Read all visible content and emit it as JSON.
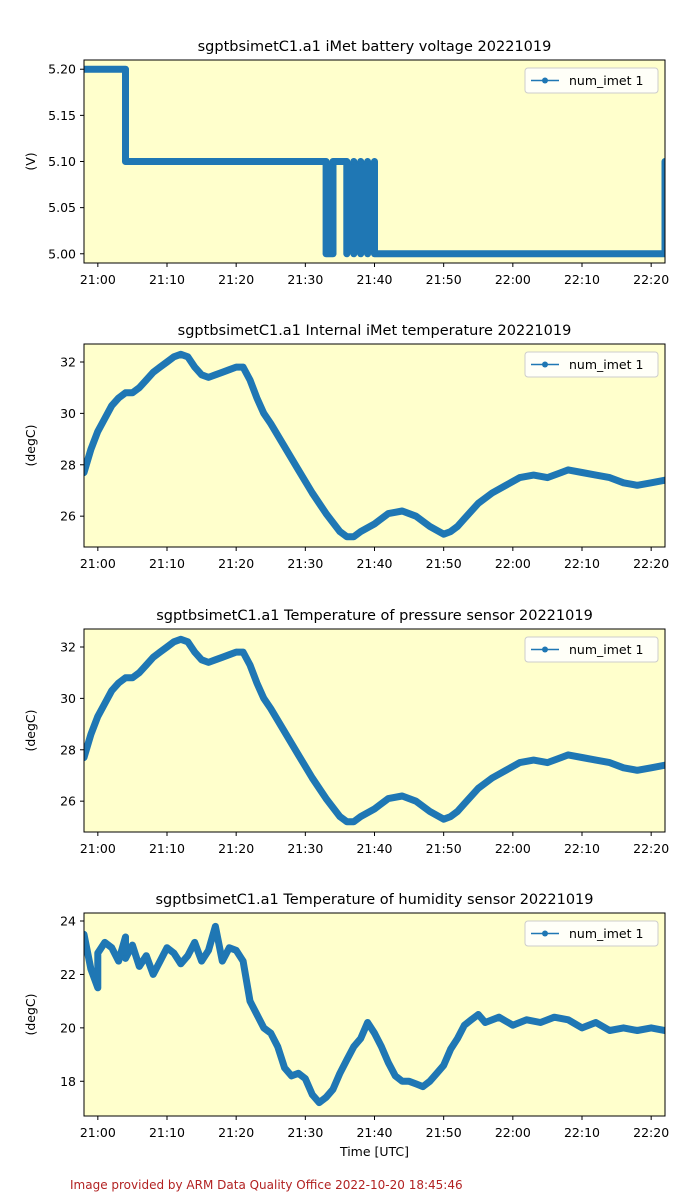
{
  "credit": "Image provided by ARM Data Quality Office 2022-10-20 18:45:46",
  "style": {
    "plot_bg": "#ffffcc",
    "series_color": "#1f77b4",
    "credit_color": "#b22222"
  },
  "chart_data": [
    {
      "type": "line",
      "title": "sgptbsimetC1.a1 iMet battery voltage 20221019",
      "xlabel": "",
      "ylabel": "(V)",
      "x_unit": "minutes after 20:58 UTC",
      "xlim": [
        "20:58",
        "22:22"
      ],
      "ylim": [
        4.99,
        5.21
      ],
      "yticks": [
        "5.00",
        "5.05",
        "5.10",
        "5.15",
        "5.20"
      ],
      "ytick_values": [
        5.0,
        5.05,
        5.1,
        5.15,
        5.2
      ],
      "xticks": [
        "21:00",
        "21:10",
        "21:20",
        "21:30",
        "21:40",
        "21:50",
        "22:00",
        "22:10",
        "22:20"
      ],
      "legend": {
        "label": "num_imet 1",
        "position": "upper-right"
      },
      "series": [
        {
          "name": "num_imet 1",
          "x": [
            "20:58",
            "21:04",
            "21:04",
            "21:33",
            "21:33",
            "21:34",
            "21:34",
            "21:36",
            "21:36",
            "21:36",
            "21:36",
            "21:37",
            "21:37",
            "21:37",
            "21:37",
            "21:38",
            "21:38",
            "21:38",
            "21:38",
            "21:39",
            "21:39",
            "21:40",
            "21:40",
            "22:22",
            "22:22"
          ],
          "y": [
            5.2,
            5.2,
            5.1,
            5.1,
            5.0,
            5.0,
            5.1,
            5.1,
            5.0,
            5.1,
            5.0,
            5.1,
            5.0,
            5.1,
            5.0,
            5.1,
            5.0,
            5.1,
            5.0,
            5.1,
            5.0,
            5.1,
            5.0,
            5.0,
            5.1
          ]
        }
      ]
    },
    {
      "type": "line",
      "title": "sgptbsimetC1.a1 Internal iMet temperature 20221019",
      "xlabel": "",
      "ylabel": "(degC)",
      "xlim": [
        "20:58",
        "22:22"
      ],
      "ylim": [
        24.8,
        32.7
      ],
      "yticks": [
        "26",
        "28",
        "30",
        "32"
      ],
      "ytick_values": [
        26,
        28,
        30,
        32
      ],
      "xticks": [
        "21:00",
        "21:10",
        "21:20",
        "21:30",
        "21:40",
        "21:50",
        "22:00",
        "22:10",
        "22:20"
      ],
      "legend": {
        "label": "num_imet 1",
        "position": "upper-right"
      },
      "series": [
        {
          "name": "num_imet 1",
          "x": [
            "20:58",
            "20:59",
            "21:00",
            "21:01",
            "21:02",
            "21:03",
            "21:04",
            "21:05",
            "21:06",
            "21:07",
            "21:08",
            "21:09",
            "21:10",
            "21:11",
            "21:12",
            "21:13",
            "21:14",
            "21:15",
            "21:16",
            "21:17",
            "21:18",
            "21:19",
            "21:20",
            "21:21",
            "21:22",
            "21:23",
            "21:24",
            "21:25",
            "21:27",
            "21:29",
            "21:31",
            "21:33",
            "21:35",
            "21:36",
            "21:37",
            "21:38",
            "21:40",
            "21:42",
            "21:44",
            "21:46",
            "21:48",
            "21:50",
            "21:51",
            "21:52",
            "21:53",
            "21:55",
            "21:57",
            "21:59",
            "22:01",
            "22:03",
            "22:05",
            "22:07",
            "22:08",
            "22:10",
            "22:12",
            "22:14",
            "22:16",
            "22:18",
            "22:20",
            "22:22"
          ],
          "y": [
            27.7,
            28.6,
            29.3,
            29.8,
            30.3,
            30.6,
            30.8,
            30.8,
            31.0,
            31.3,
            31.6,
            31.8,
            32.0,
            32.2,
            32.3,
            32.2,
            31.8,
            31.5,
            31.4,
            31.5,
            31.6,
            31.7,
            31.8,
            31.8,
            31.3,
            30.6,
            30.0,
            29.6,
            28.7,
            27.8,
            26.9,
            26.1,
            25.4,
            25.2,
            25.2,
            25.4,
            25.7,
            26.1,
            26.2,
            26.0,
            25.6,
            25.3,
            25.4,
            25.6,
            25.9,
            26.5,
            26.9,
            27.2,
            27.5,
            27.6,
            27.5,
            27.7,
            27.8,
            27.7,
            27.6,
            27.5,
            27.3,
            27.2,
            27.3,
            27.4
          ]
        }
      ]
    },
    {
      "type": "line",
      "title": "sgptbsimetC1.a1 Temperature of pressure sensor 20221019",
      "xlabel": "",
      "ylabel": "(degC)",
      "xlim": [
        "20:58",
        "22:22"
      ],
      "ylim": [
        24.8,
        32.7
      ],
      "yticks": [
        "26",
        "28",
        "30",
        "32"
      ],
      "ytick_values": [
        26,
        28,
        30,
        32
      ],
      "xticks": [
        "21:00",
        "21:10",
        "21:20",
        "21:30",
        "21:40",
        "21:50",
        "22:00",
        "22:10",
        "22:20"
      ],
      "legend": {
        "label": "num_imet 1",
        "position": "upper-right"
      },
      "series": [
        {
          "name": "num_imet 1",
          "x": [
            "20:58",
            "20:59",
            "21:00",
            "21:01",
            "21:02",
            "21:03",
            "21:04",
            "21:05",
            "21:06",
            "21:07",
            "21:08",
            "21:09",
            "21:10",
            "21:11",
            "21:12",
            "21:13",
            "21:14",
            "21:15",
            "21:16",
            "21:17",
            "21:18",
            "21:19",
            "21:20",
            "21:21",
            "21:22",
            "21:23",
            "21:24",
            "21:25",
            "21:27",
            "21:29",
            "21:31",
            "21:33",
            "21:35",
            "21:36",
            "21:37",
            "21:38",
            "21:40",
            "21:42",
            "21:44",
            "21:46",
            "21:48",
            "21:50",
            "21:51",
            "21:52",
            "21:53",
            "21:55",
            "21:57",
            "21:59",
            "22:01",
            "22:03",
            "22:05",
            "22:07",
            "22:08",
            "22:10",
            "22:12",
            "22:14",
            "22:16",
            "22:18",
            "22:20",
            "22:22"
          ],
          "y": [
            27.7,
            28.6,
            29.3,
            29.8,
            30.3,
            30.6,
            30.8,
            30.8,
            31.0,
            31.3,
            31.6,
            31.8,
            32.0,
            32.2,
            32.3,
            32.2,
            31.8,
            31.5,
            31.4,
            31.5,
            31.6,
            31.7,
            31.8,
            31.8,
            31.3,
            30.6,
            30.0,
            29.6,
            28.7,
            27.8,
            26.9,
            26.1,
            25.4,
            25.2,
            25.2,
            25.4,
            25.7,
            26.1,
            26.2,
            26.0,
            25.6,
            25.3,
            25.4,
            25.6,
            25.9,
            26.5,
            26.9,
            27.2,
            27.5,
            27.6,
            27.5,
            27.7,
            27.8,
            27.7,
            27.6,
            27.5,
            27.3,
            27.2,
            27.3,
            27.4
          ]
        }
      ]
    },
    {
      "type": "line",
      "title": "sgptbsimetC1.a1 Temperature of humidity sensor 20221019",
      "xlabel": "Time [UTC]",
      "ylabel": "(degC)",
      "xlim": [
        "20:58",
        "22:22"
      ],
      "ylim": [
        16.7,
        24.3
      ],
      "yticks": [
        "18",
        "20",
        "22",
        "24"
      ],
      "ytick_values": [
        18,
        20,
        22,
        24
      ],
      "xticks": [
        "21:00",
        "21:10",
        "21:20",
        "21:30",
        "21:40",
        "21:50",
        "22:00",
        "22:10",
        "22:20"
      ],
      "legend": {
        "label": "num_imet 1",
        "position": "upper-right"
      },
      "series": [
        {
          "name": "num_imet 1",
          "x": [
            "20:58",
            "20:59",
            "21:00",
            "21:00",
            "21:01",
            "21:02",
            "21:03",
            "21:04",
            "21:04",
            "21:05",
            "21:06",
            "21:07",
            "21:08",
            "21:09",
            "21:10",
            "21:11",
            "21:12",
            "21:13",
            "21:14",
            "21:15",
            "21:16",
            "21:17",
            "21:18",
            "21:19",
            "21:20",
            "21:21",
            "21:22",
            "21:23",
            "21:24",
            "21:25",
            "21:26",
            "21:27",
            "21:28",
            "21:29",
            "21:30",
            "21:31",
            "21:32",
            "21:33",
            "21:34",
            "21:35",
            "21:36",
            "21:37",
            "21:38",
            "21:39",
            "21:40",
            "21:41",
            "21:42",
            "21:43",
            "21:44",
            "21:45",
            "21:46",
            "21:47",
            "21:48",
            "21:49",
            "21:50",
            "21:51",
            "21:52",
            "21:53",
            "21:54",
            "21:55",
            "21:56",
            "21:58",
            "22:00",
            "22:02",
            "22:04",
            "22:06",
            "22:08",
            "22:10",
            "22:12",
            "22:14",
            "22:16",
            "22:18",
            "22:20",
            "22:22"
          ],
          "y": [
            23.5,
            22.2,
            21.5,
            22.8,
            23.2,
            23.0,
            22.5,
            23.4,
            22.6,
            23.1,
            22.3,
            22.7,
            22.0,
            22.5,
            23.0,
            22.8,
            22.4,
            22.7,
            23.2,
            22.5,
            22.9,
            23.8,
            22.5,
            23.0,
            22.9,
            22.5,
            21.0,
            20.5,
            20.0,
            19.8,
            19.3,
            18.5,
            18.2,
            18.3,
            18.1,
            17.5,
            17.2,
            17.4,
            17.7,
            18.3,
            18.8,
            19.3,
            19.6,
            20.2,
            19.8,
            19.3,
            18.7,
            18.2,
            18.0,
            18.0,
            17.9,
            17.8,
            18.0,
            18.3,
            18.6,
            19.2,
            19.6,
            20.1,
            20.3,
            20.5,
            20.2,
            20.4,
            20.1,
            20.3,
            20.2,
            20.4,
            20.3,
            20.0,
            20.2,
            19.9,
            20.0,
            19.9,
            20.0,
            19.9
          ]
        }
      ]
    }
  ]
}
